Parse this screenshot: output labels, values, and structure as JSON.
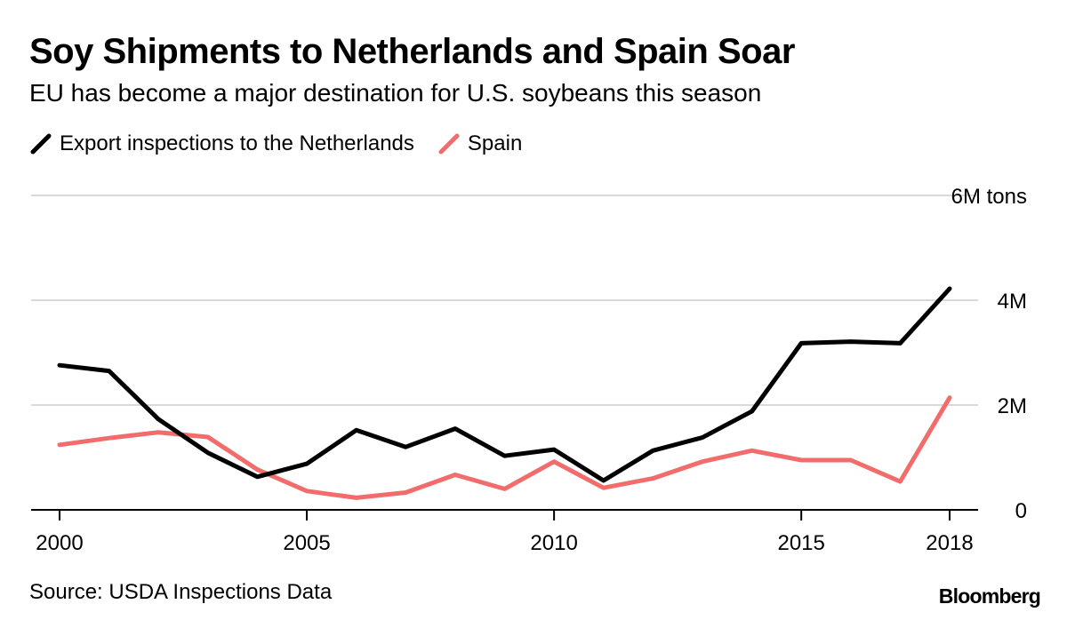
{
  "header": {
    "title": "Soy Shipments to Netherlands and Spain Soar",
    "subtitle": "EU has become a major destination for U.S. soybeans this season"
  },
  "footer": {
    "source": "Source: USDA Inspections Data",
    "brand": "Bloomberg"
  },
  "colors": {
    "netherlands": "#000000",
    "spain": "#f26c6c",
    "grid": "#d9d9d9",
    "axis": "#000000"
  },
  "chart_data": {
    "type": "line",
    "title": "Soy Shipments to Netherlands and Spain Soar",
    "subtitle": "EU has become a major destination for U.S. soybeans this season",
    "xlabel": "",
    "ylabel": "",
    "x": [
      2000,
      2001,
      2002,
      2003,
      2004,
      2005,
      2006,
      2007,
      2008,
      2009,
      2010,
      2011,
      2012,
      2013,
      2014,
      2015,
      2016,
      2017,
      2018
    ],
    "x_ticks": [
      2000,
      2005,
      2010,
      2015,
      2018
    ],
    "x_tick_labels": [
      "2000",
      "2005",
      "2010",
      "2015",
      "2018"
    ],
    "xlim": [
      2000,
      2018
    ],
    "ylim": [
      0,
      6
    ],
    "y_ticks": [
      0,
      2,
      4,
      6
    ],
    "y_tick_labels": [
      "0",
      "2M",
      "4M",
      "6M tons"
    ],
    "grid": true,
    "legend_position": "top-left",
    "series": [
      {
        "name": "Export inspections to the Netherlands",
        "color": "#000000",
        "values": [
          2.76,
          2.65,
          1.73,
          1.09,
          0.63,
          0.88,
          1.52,
          1.2,
          1.55,
          1.03,
          1.15,
          0.56,
          1.13,
          1.38,
          1.88,
          3.18,
          3.21,
          3.18,
          4.22
        ]
      },
      {
        "name": "Spain",
        "color": "#f26c6c",
        "values": [
          1.24,
          1.37,
          1.48,
          1.39,
          0.77,
          0.36,
          0.23,
          0.33,
          0.67,
          0.4,
          0.92,
          0.42,
          0.6,
          0.92,
          1.13,
          0.95,
          0.95,
          0.54,
          2.14
        ]
      }
    ]
  }
}
